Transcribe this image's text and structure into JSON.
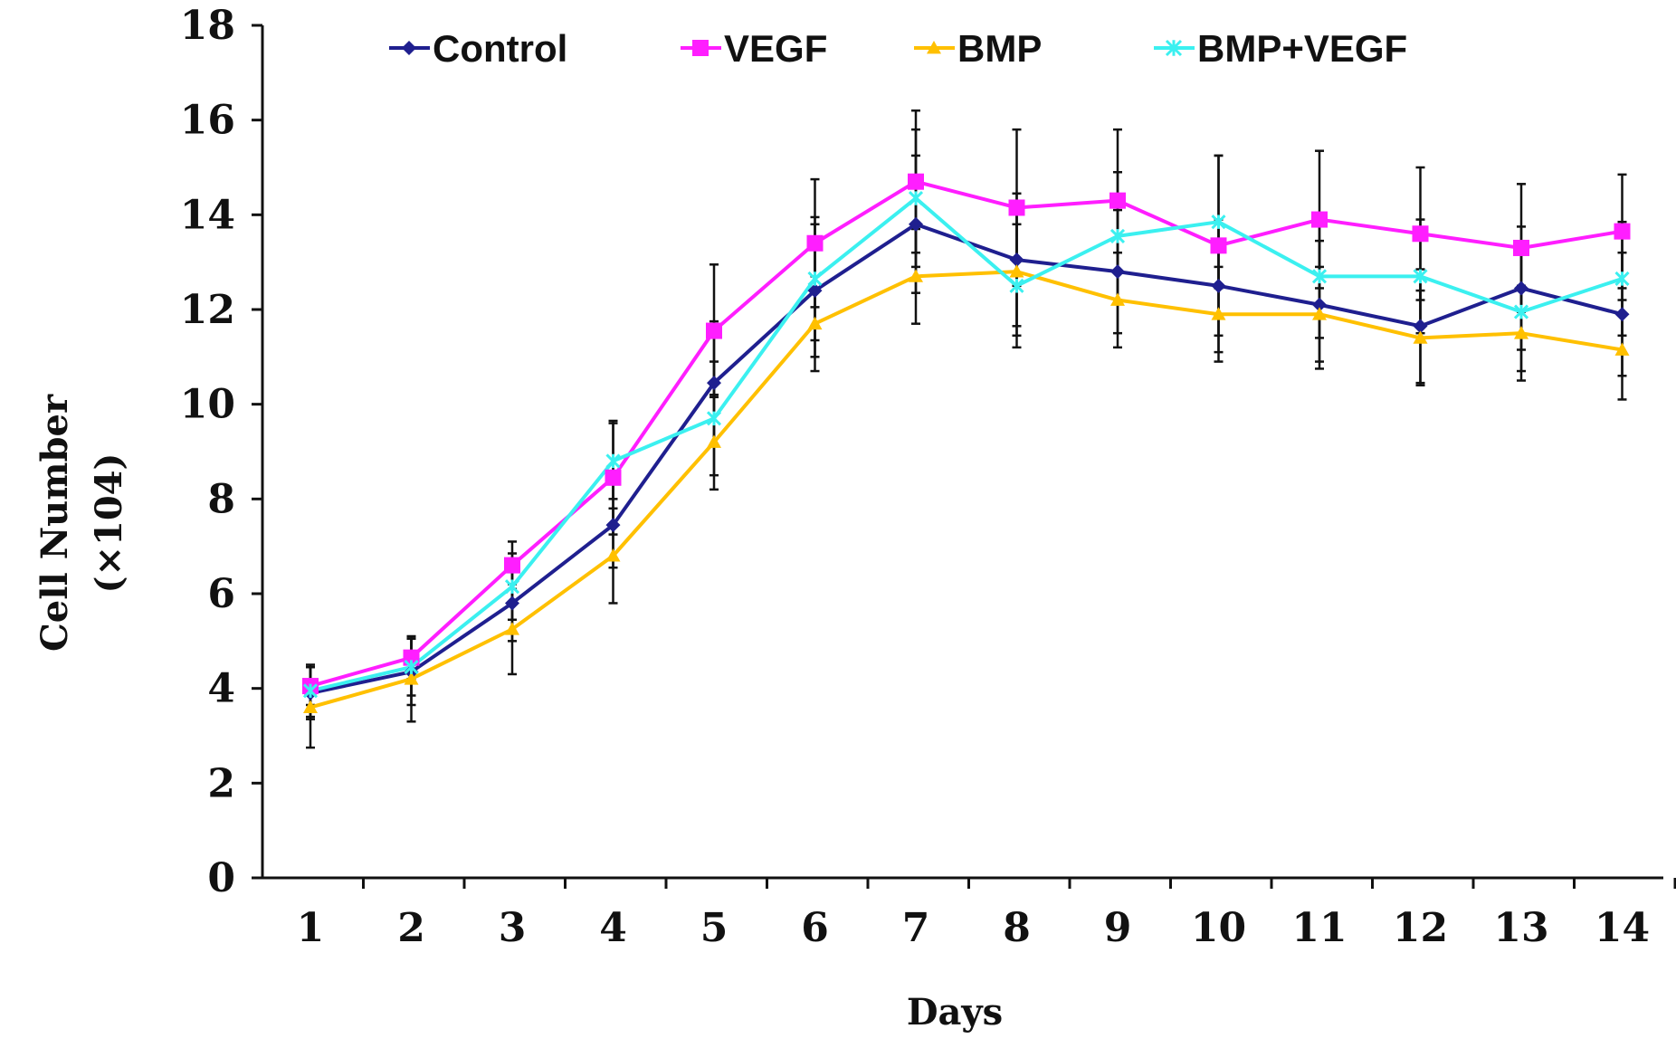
{
  "chart_data": {
    "type": "line",
    "title": "",
    "xlabel": "Days",
    "ylabel_line1": "Cell Number",
    "ylabel_line2": "(×104)",
    "x": [
      1,
      2,
      3,
      4,
      5,
      6,
      7,
      8,
      9,
      10,
      11,
      12,
      13,
      14
    ],
    "x_tick_labels": [
      "1",
      "2",
      "3",
      "4",
      "5",
      "6",
      "7",
      "8",
      "9",
      "10",
      "11",
      "12",
      "13",
      "14"
    ],
    "y_tick_labels": [
      "0",
      "2",
      "4",
      "6",
      "8",
      "10",
      "12",
      "14",
      "16",
      "18"
    ],
    "ylim": [
      0,
      18
    ],
    "y_ticks": [
      0,
      2,
      4,
      6,
      8,
      10,
      12,
      14,
      16,
      18
    ],
    "grid": false,
    "legend_position": "top",
    "series": [
      {
        "name": "Control",
        "color": "#1f1f8f",
        "marker": "diamond",
        "values": [
          3.9,
          4.35,
          5.8,
          7.45,
          10.45,
          12.4,
          13.8,
          13.05,
          12.8,
          12.5,
          12.1,
          11.65,
          12.45,
          11.9
        ],
        "error": [
          0.55,
          0.7,
          0.8,
          0.9,
          1.3,
          1.4,
          1.45,
          1.4,
          1.3,
          1.4,
          1.35,
          1.2,
          1.3,
          1.3
        ]
      },
      {
        "name": "VEGF",
        "color": "#ff1eff",
        "marker": "square",
        "values": [
          4.05,
          4.65,
          6.6,
          8.45,
          11.55,
          13.4,
          14.7,
          14.15,
          14.3,
          13.35,
          13.9,
          13.6,
          13.3,
          13.65
        ],
        "error": [
          0.4,
          0.45,
          0.5,
          1.2,
          1.4,
          1.35,
          1.5,
          1.65,
          1.5,
          1.9,
          1.45,
          1.4,
          1.35,
          1.2
        ]
      },
      {
        "name": "BMP",
        "color": "#ffc000",
        "marker": "triangle",
        "values": [
          3.6,
          4.2,
          5.25,
          6.8,
          9.2,
          11.7,
          12.7,
          12.8,
          12.2,
          11.9,
          11.9,
          11.4,
          11.5,
          11.15
        ],
        "error": [
          0.85,
          0.9,
          0.95,
          1.0,
          1.0,
          1.0,
          1.0,
          1.35,
          1.0,
          1.0,
          1.0,
          1.0,
          1.0,
          1.05
        ]
      },
      {
        "name": "BMP+VEGF",
        "color": "#3bf0f0",
        "marker": "star",
        "values": [
          3.95,
          4.45,
          6.15,
          8.8,
          9.7,
          12.65,
          14.35,
          12.5,
          13.55,
          13.85,
          12.7,
          12.7,
          11.95,
          12.65
        ],
        "error": [
          0.55,
          0.6,
          0.7,
          0.8,
          1.2,
          1.3,
          1.45,
          1.3,
          1.35,
          1.4,
          1.3,
          1.2,
          1.25,
          1.2
        ]
      }
    ]
  }
}
